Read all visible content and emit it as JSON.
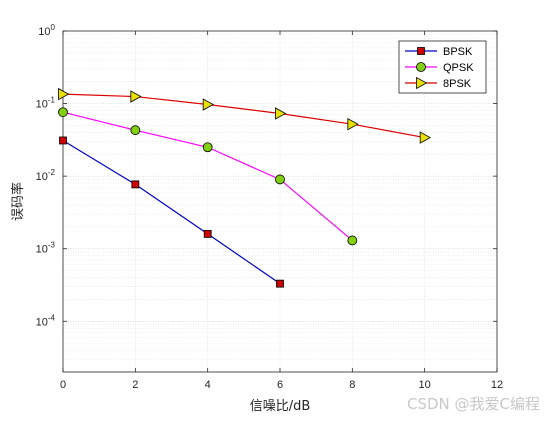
{
  "chart_data": {
    "type": "line",
    "title": "",
    "xlabel": "信噪比/dB",
    "ylabel": "误码率",
    "xlim": [
      0,
      12
    ],
    "ylim": [
      2e-05,
      1
    ],
    "yscale": "log",
    "grid": true,
    "legend_position": "top-right",
    "x_ticks": [
      0,
      2,
      4,
      6,
      8,
      10,
      12
    ],
    "y_ticks": [
      {
        "value": 1,
        "exp": "0"
      },
      {
        "value": 0.1,
        "exp": "-1"
      },
      {
        "value": 0.01,
        "exp": "-2"
      },
      {
        "value": 0.001,
        "exp": "-3"
      },
      {
        "value": 0.0001,
        "exp": "-4"
      }
    ],
    "series": [
      {
        "name": "BPSK",
        "color": "#0000cc",
        "marker": "square",
        "marker_fill": "#cc0000",
        "x": [
          0,
          2,
          4,
          6
        ],
        "y": [
          0.031,
          0.0077,
          0.0016,
          0.00033
        ]
      },
      {
        "name": "QPSK",
        "color": "#ff00ff",
        "marker": "circle",
        "marker_fill": "#80d010",
        "x": [
          0,
          2,
          4,
          6,
          8
        ],
        "y": [
          0.076,
          0.043,
          0.025,
          0.009,
          0.0013
        ]
      },
      {
        "name": "8PSK",
        "color": "#dd0000",
        "marker": "triangle-right",
        "marker_fill": "#e8e000",
        "x": [
          0,
          2,
          4,
          6,
          8,
          10
        ],
        "y": [
          0.135,
          0.125,
          0.097,
          0.073,
          0.052,
          0.034
        ]
      }
    ]
  },
  "watermark": "CSDN @我爱C编程"
}
